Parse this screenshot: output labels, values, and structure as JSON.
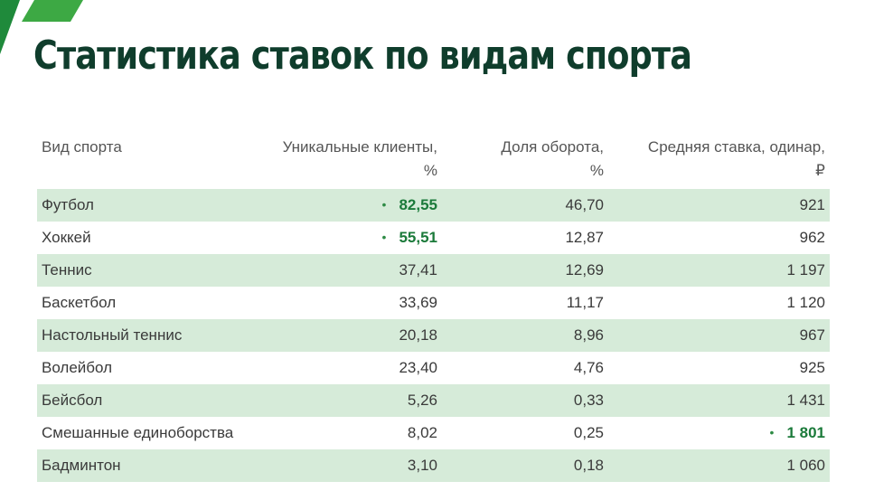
{
  "title": "Статистика ставок по видам спорта",
  "brand": {
    "accent_color": "#3da944",
    "title_color": "#0f3d2c",
    "row_shade_color": "#d6ebd9",
    "highlight_color": "#1b7a3a"
  },
  "table": {
    "headers": {
      "sport": "Вид спорта",
      "unique_clients": "Уникальные клиенты,",
      "unique_clients_unit": "%",
      "turnover_share": "Доля оборота,",
      "turnover_share_unit": "%",
      "avg_bet": "Средняя ставка, одинар,",
      "avg_bet_unit": "₽"
    },
    "rows": [
      {
        "sport": "Футбол",
        "unique_clients": "82,55",
        "turnover_share": "46,70",
        "avg_bet": "921"
      },
      {
        "sport": "Хоккей",
        "unique_clients": "55,51",
        "turnover_share": "12,87",
        "avg_bet": "962"
      },
      {
        "sport": "Теннис",
        "unique_clients": "37,41",
        "turnover_share": "12,69",
        "avg_bet": "1 197"
      },
      {
        "sport": "Баскетбол",
        "unique_clients": "33,69",
        "turnover_share": "11,17",
        "avg_bet": "1 120"
      },
      {
        "sport": "Настольный теннис",
        "unique_clients": "20,18",
        "turnover_share": "8,96",
        "avg_bet": "967"
      },
      {
        "sport": "Волейбол",
        "unique_clients": "23,40",
        "turnover_share": "4,76",
        "avg_bet": "925"
      },
      {
        "sport": "Бейсбол",
        "unique_clients": "5,26",
        "turnover_share": "0,33",
        "avg_bet": "1 431"
      },
      {
        "sport": "Смешанные единоборства",
        "unique_clients": "8,02",
        "turnover_share": "0,25",
        "avg_bet": "1 801"
      },
      {
        "sport": "Бадминтон",
        "unique_clients": "3,10",
        "turnover_share": "0,18",
        "avg_bet": "1 060"
      }
    ],
    "highlights": {
      "bullet_glyph": "•",
      "unique_clients_rows": [
        0,
        1
      ],
      "avg_bet_rows": [
        7
      ]
    }
  }
}
